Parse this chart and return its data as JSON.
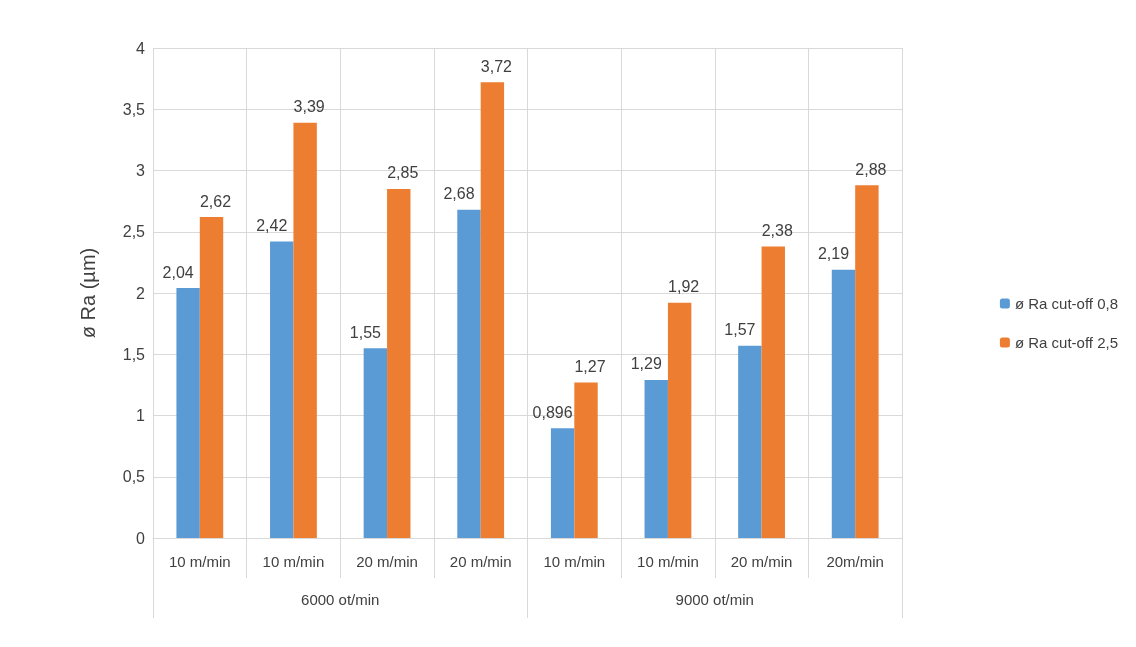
{
  "chart_data": {
    "type": "bar",
    "ylabel": "ø Ra (µm)",
    "categories": [
      "10 m/min",
      "10 m/min",
      "20 m/min",
      "20 m/min",
      "10 m/min",
      "10 m/min",
      "20 m/min",
      "20m/min"
    ],
    "annotations": [
      "6000 ot/min",
      "9000 ot/min"
    ],
    "series": [
      {
        "name": "ø Ra cut-off 0,8",
        "color": "#5b9bd5",
        "values": [
          2.04,
          2.42,
          1.55,
          2.68,
          0.896,
          1.29,
          1.57,
          2.19
        ],
        "value_labels": [
          "2,04",
          "2,42",
          "1,55",
          "2,68",
          "0,896",
          "1,29",
          "1,57",
          "2,19"
        ]
      },
      {
        "name": "ø Ra cut-off 2,5",
        "color": "#ed7d31",
        "values": [
          2.62,
          3.39,
          2.85,
          3.72,
          1.27,
          1.92,
          2.38,
          2.88
        ],
        "value_labels": [
          "2,62",
          "3,39",
          "2,85",
          "3,72",
          "1,27",
          "1,92",
          "2,38",
          "2,88"
        ]
      }
    ],
    "ylim": [
      0,
      4
    ],
    "yticks": [
      0,
      {
        "value": 0.5,
        "label": "0,5"
      },
      1,
      {
        "value": 1.5,
        "label": "1,5"
      },
      2,
      {
        "value": 2.5,
        "label": "2,5"
      },
      3,
      {
        "value": 3.5,
        "label": "3,5"
      },
      4
    ],
    "grid": true,
    "legend": "right"
  }
}
